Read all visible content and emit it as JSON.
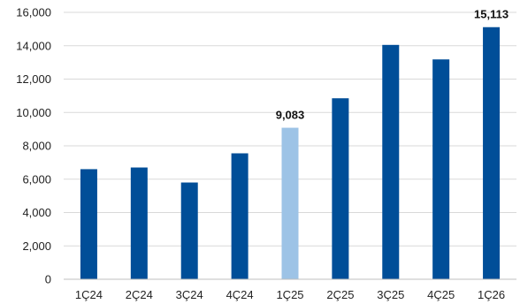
{
  "chart_data": {
    "type": "bar",
    "title": "",
    "xlabel": "",
    "ylabel": "",
    "categories": [
      "1Ç24",
      "2Ç24",
      "3Ç24",
      "4Ç24",
      "1Ç25",
      "2Ç25",
      "3Ç25",
      "4Ç25",
      "1Ç26"
    ],
    "values": [
      6600,
      6700,
      5800,
      7550,
      9083,
      10850,
      14050,
      13180,
      15113
    ],
    "data_labels": [
      {
        "category": "1Ç25",
        "text": "9,083"
      },
      {
        "category": "1Ç26",
        "text": "15,113"
      }
    ],
    "highlighted_category": "1Ç25",
    "ylim": [
      0,
      16000
    ],
    "yticks": [
      0,
      2000,
      4000,
      6000,
      8000,
      10000,
      12000,
      14000,
      16000
    ],
    "ytick_labels": [
      "0",
      "2,000",
      "4,000",
      "6,000",
      "8,000",
      "10,000",
      "12,000",
      "14,000",
      "16,000"
    ],
    "grid": true,
    "legend": "none",
    "colors": {
      "bar": "#004e98",
      "highlight": "#9dc3e6",
      "grid": "#d9d9d9",
      "axis": "#bfbfbf",
      "text": "#222222"
    }
  }
}
